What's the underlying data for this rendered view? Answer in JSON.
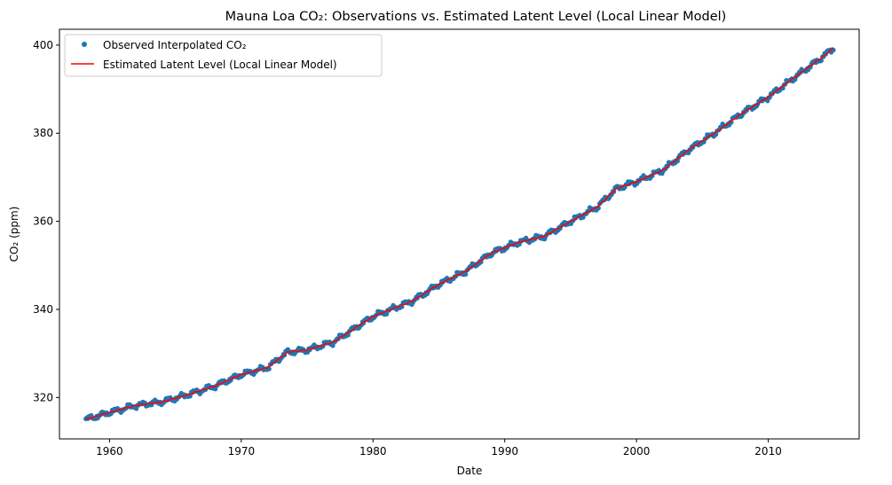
{
  "chart_data": {
    "type": "line",
    "title": "Mauna Loa CO₂: Observations vs. Estimated Latent Level (Local Linear Model)",
    "xlabel": "Date",
    "ylabel": "CO₂ (ppm)",
    "xlim": [
      1956.2,
      2016.9
    ],
    "ylim": [
      310.6,
      403.6
    ],
    "x_ticks": [
      1960,
      1970,
      1980,
      1990,
      2000,
      2010
    ],
    "y_ticks": [
      320,
      340,
      360,
      380,
      400
    ],
    "grid": false,
    "legend_position": "upper-left",
    "anchor_points": [
      [
        1958.2,
        315.0
      ],
      [
        1960.0,
        316.6
      ],
      [
        1962.0,
        318.2
      ],
      [
        1964.0,
        319.0
      ],
      [
        1966.0,
        320.7
      ],
      [
        1968.0,
        322.6
      ],
      [
        1970.0,
        325.2
      ],
      [
        1972.0,
        326.8
      ],
      [
        1973.5,
        330.3
      ],
      [
        1975.0,
        330.8
      ],
      [
        1977.0,
        332.6
      ],
      [
        1980.0,
        338.4
      ],
      [
        1983.0,
        341.9
      ],
      [
        1985.0,
        345.7
      ],
      [
        1987.0,
        348.6
      ],
      [
        1989.0,
        352.8
      ],
      [
        1991.0,
        355.2
      ],
      [
        1993.0,
        356.6
      ],
      [
        1995.0,
        360.0
      ],
      [
        1997.0,
        363.2
      ],
      [
        1998.5,
        367.5
      ],
      [
        2000.0,
        369.0
      ],
      [
        2002.0,
        371.6
      ],
      [
        2004.0,
        376.3
      ],
      [
        2006.0,
        380.2
      ],
      [
        2008.0,
        384.5
      ],
      [
        2010.0,
        388.2
      ],
      [
        2012.0,
        392.7
      ],
      [
        2014.0,
        397.0
      ],
      [
        2015.0,
        399.5
      ]
    ],
    "series": [
      {
        "name": "Observed Interpolated CO₂",
        "style": "markers",
        "color": "#1f77b4",
        "x_step_years": 0.08333,
        "seasonal_amplitude": 0.7
      },
      {
        "name": "Estimated Latent Level (Local Linear Model)",
        "style": "line",
        "color": "#ff0000"
      }
    ]
  }
}
